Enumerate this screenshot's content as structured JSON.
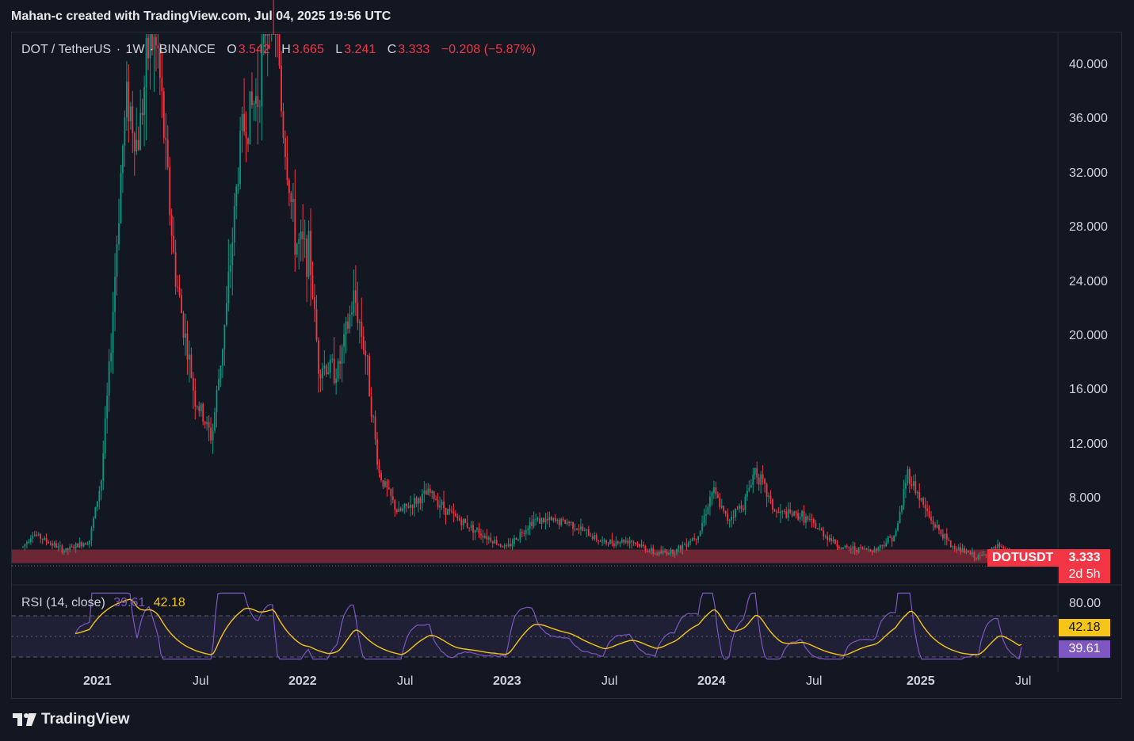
{
  "header": {
    "attribution": "Mahan-c created with TradingView.com, Jul 04, 2025 19:56 UTC"
  },
  "symbol": {
    "name": "DOT / TetherUS",
    "interval": "1W",
    "exchange": "BINANCE",
    "o_label": "O",
    "o_value": "3.542",
    "h_label": "H",
    "h_value": "3.665",
    "l_label": "L",
    "l_value": "3.241",
    "c_label": "C",
    "c_value": "3.333",
    "change": "−0.208 (−5.87%)"
  },
  "price_badge": {
    "ticker": "DOTUSDT",
    "price": "3.333",
    "countdown": "2d 5h"
  },
  "rsi": {
    "label": "RSI (14, close)",
    "value": "39.61",
    "ma_value": "42.18",
    "axis_top": "80.00"
  },
  "footer": {
    "brand": "TradingView"
  },
  "colors": {
    "up": "#089981",
    "down": "#f23645",
    "rsi": "#7e57c2",
    "rsi_ma": "#f5c518",
    "zone": "#8b2c3a"
  },
  "chart_data": {
    "type": "candlestick",
    "title": "DOT / TetherUS · 1W · BINANCE",
    "y_ticks": [
      "40.000",
      "36.000",
      "32.000",
      "28.000",
      "24.000",
      "20.000",
      "16.000",
      "12.000",
      "8.000"
    ],
    "x_ticks": [
      "2021",
      "Jul",
      "2022",
      "Jul",
      "2023",
      "Jul",
      "2024",
      "Jul",
      "2025",
      "Jul"
    ],
    "ylim": [
      2.5,
      42.5
    ],
    "support_zone": [
      3.3,
      4.3
    ],
    "close_path": [
      [
        "2020-08-19",
        4.5
      ],
      [
        "2020-09-05",
        5.5
      ],
      [
        "2020-11-01",
        4.2
      ],
      [
        "2020-12-15",
        5.0
      ],
      [
        "2021-01-05",
        9.5
      ],
      [
        "2021-01-20",
        18.0
      ],
      [
        "2021-02-10",
        33.0
      ],
      [
        "2021-02-20",
        38.0
      ],
      [
        "2021-03-10",
        34.0
      ],
      [
        "2021-04-01",
        42.0
      ],
      [
        "2021-04-15",
        41.0
      ],
      [
        "2021-05-15",
        25.0
      ],
      [
        "2021-06-20",
        15.5
      ],
      [
        "2021-07-20",
        12.5
      ],
      [
        "2021-08-15",
        22.0
      ],
      [
        "2021-09-10",
        35.0
      ],
      [
        "2021-10-10",
        38.0
      ],
      [
        "2021-11-05",
        48.0
      ],
      [
        "2021-11-20",
        37.0
      ],
      [
        "2021-12-15",
        27.0
      ],
      [
        "2022-01-10",
        26.0
      ],
      [
        "2022-01-25",
        18.0
      ],
      [
        "2022-03-01",
        17.5
      ],
      [
        "2022-03-30",
        23.0
      ],
      [
        "2022-04-20",
        18.5
      ],
      [
        "2022-05-12",
        10.0
      ],
      [
        "2022-06-15",
        7.0
      ],
      [
        "2022-08-10",
        8.5
      ],
      [
        "2022-09-20",
        6.8
      ],
      [
        "2022-11-10",
        5.5
      ],
      [
        "2022-12-25",
        4.4
      ],
      [
        "2023-02-10",
        6.5
      ],
      [
        "2023-04-15",
        6.3
      ],
      [
        "2023-06-15",
        4.8
      ],
      [
        "2023-08-01",
        5.0
      ],
      [
        "2023-09-15",
        4.0
      ],
      [
        "2023-10-20",
        4.2
      ],
      [
        "2023-12-01",
        5.5
      ],
      [
        "2023-12-25",
        8.7
      ],
      [
        "2024-01-20",
        6.5
      ],
      [
        "2024-02-20",
        7.8
      ],
      [
        "2024-03-10",
        10.3
      ],
      [
        "2024-04-15",
        7.0
      ],
      [
        "2024-06-01",
        6.8
      ],
      [
        "2024-08-10",
        4.4
      ],
      [
        "2024-10-10",
        4.3
      ],
      [
        "2024-11-15",
        5.5
      ],
      [
        "2024-12-05",
        10.0
      ],
      [
        "2025-01-15",
        6.5
      ],
      [
        "2025-02-20",
        4.6
      ],
      [
        "2025-04-10",
        3.7
      ],
      [
        "2025-05-15",
        4.5
      ],
      [
        "2025-07-01",
        3.333
      ]
    ],
    "rsi_axis_ticks": [
      "80.00"
    ],
    "rsi_bands": [
      70,
      30
    ],
    "rsi_last": 39.61,
    "rsi_ma_last": 42.18
  }
}
